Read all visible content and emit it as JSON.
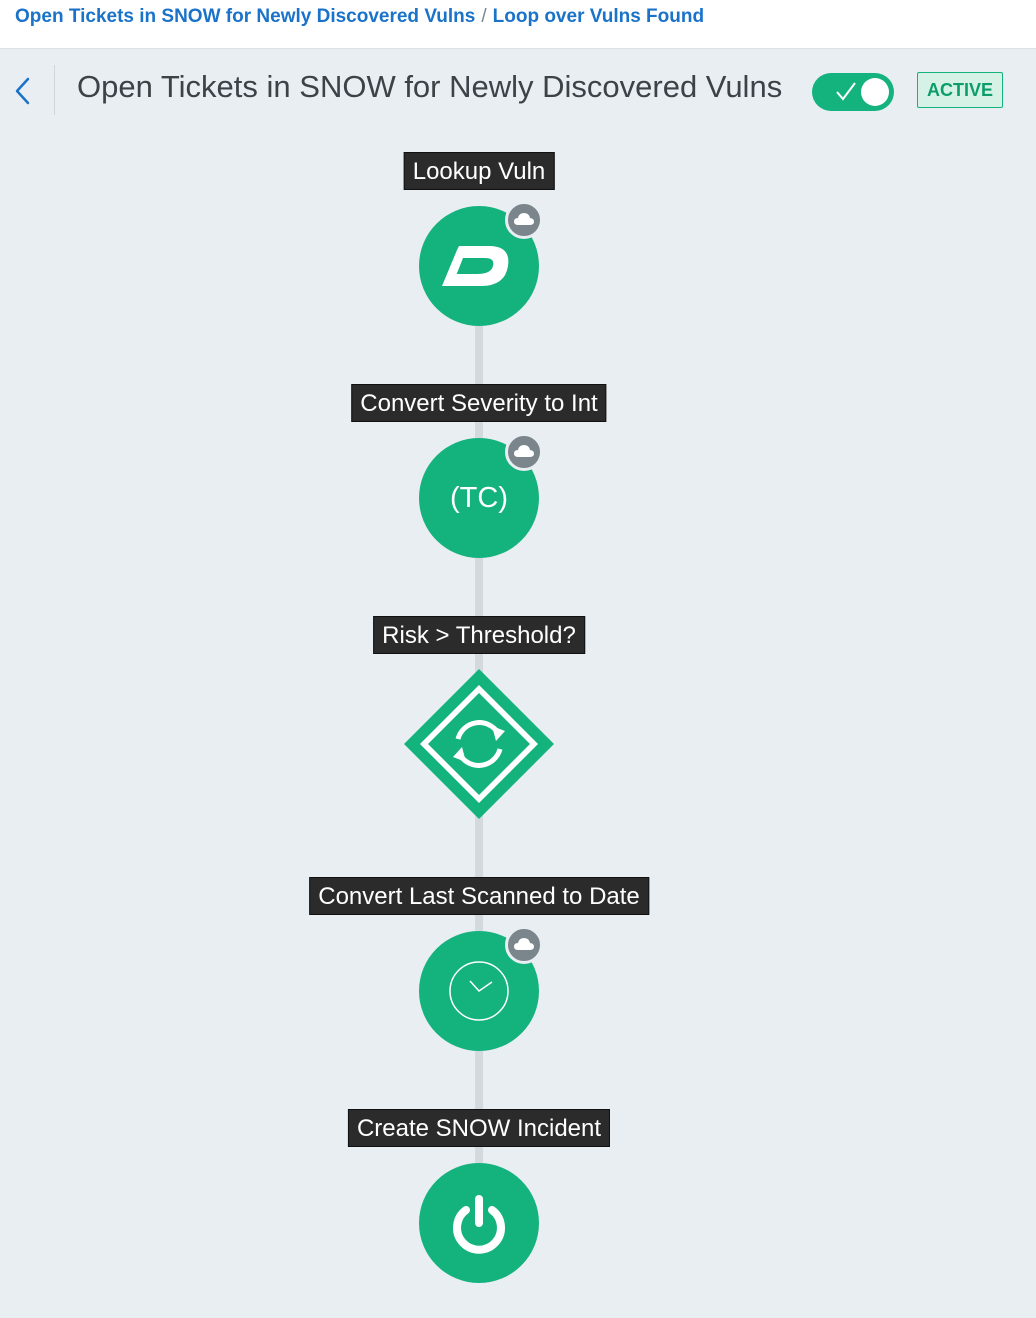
{
  "breadcrumb": {
    "items": [
      {
        "label": "Open Tickets in SNOW for Newly Discovered Vulns"
      },
      {
        "label": "Loop over Vulns Found"
      }
    ],
    "separator": "/"
  },
  "header": {
    "title": "Open Tickets in SNOW for Newly Discovered Vulns",
    "toggle_on": true,
    "status": "ACTIVE"
  },
  "colors": {
    "accent": "#14b37d",
    "link": "#1a73c9",
    "canvas": "#e9eef2",
    "label_bg": "#2b2b2b",
    "cloud_badge": "#7b858c"
  },
  "steps": [
    {
      "label": "Lookup Vuln",
      "icon": "dark-logo-icon",
      "cloud": true
    },
    {
      "label": "Convert Severity to Int",
      "icon": "tc-icon",
      "icon_text": "(TC)",
      "cloud": true
    },
    {
      "label": "Risk > Threshold?",
      "icon": "loop-arrows-icon",
      "cloud": false
    },
    {
      "label": "Convert Last Scanned to Date",
      "icon": "clock-icon",
      "cloud": true
    },
    {
      "label": "Create SNOW Incident",
      "icon": "power-icon",
      "cloud": false
    }
  ]
}
